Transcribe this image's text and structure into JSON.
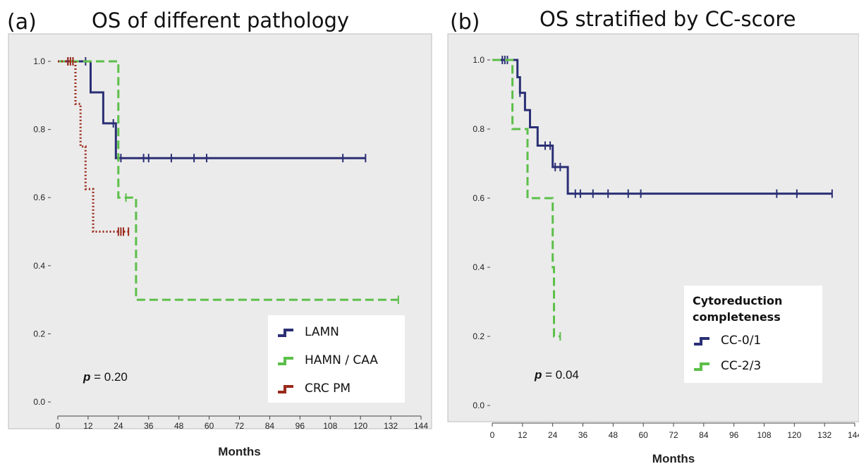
{
  "chart_data": [
    {
      "panel_label": "(a)",
      "title": "OS of different pathology",
      "type": "line",
      "subtype": "kaplan-meier",
      "xlabel": "Months",
      "ylabel": "",
      "xlim": [
        0,
        144
      ],
      "ylim": [
        0,
        1
      ],
      "x_ticks": [
        "0",
        "12",
        "24",
        "36",
        "48",
        "60",
        "72",
        "84",
        "96",
        "108",
        "120",
        "132",
        "144"
      ],
      "y_ticks": [
        "0.0",
        "0.2",
        "0.4",
        "0.6",
        "0.8",
        "1.0"
      ],
      "grid": false,
      "legend_title": "",
      "legend_position": "bottom-right",
      "p_value": {
        "symbol": "p",
        "text": " = 0.20"
      },
      "series": [
        {
          "name": "LAMN",
          "color": "#2b2f75",
          "dash": "solid",
          "steps": [
            [
              0,
              1.0
            ],
            [
              13,
              1.0
            ],
            [
              13,
              0.909
            ],
            [
              18,
              0.909
            ],
            [
              18,
              0.818
            ],
            [
              22,
              0.818
            ],
            [
              22,
              0.818
            ],
            [
              23,
              0.818
            ],
            [
              23,
              0.716
            ],
            [
              122,
              0.716
            ]
          ],
          "censored": [
            [
              4,
              1.0
            ],
            [
              6,
              1.0
            ],
            [
              11,
              1.0
            ],
            [
              22,
              0.818
            ],
            [
              25,
              0.716
            ],
            [
              34,
              0.716
            ],
            [
              36,
              0.716
            ],
            [
              45,
              0.716
            ],
            [
              54,
              0.716
            ],
            [
              59,
              0.716
            ],
            [
              113,
              0.716
            ],
            [
              122,
              0.716
            ]
          ]
        },
        {
          "name": "HAMN / CAA",
          "color": "#5cbf49",
          "dash": "dashed",
          "steps": [
            [
              0,
              1.0
            ],
            [
              24,
              1.0
            ],
            [
              24,
              0.6
            ],
            [
              31,
              0.6
            ],
            [
              31,
              0.3
            ],
            [
              135,
              0.3
            ]
          ],
          "censored": [
            [
              27,
              0.6
            ],
            [
              135,
              0.3
            ]
          ]
        },
        {
          "name": "CRC PM",
          "color": "#9a2a1c",
          "dash": "dotted",
          "steps": [
            [
              0,
              1.0
            ],
            [
              7,
              1.0
            ],
            [
              7,
              0.875
            ],
            [
              9,
              0.875
            ],
            [
              9,
              0.75
            ],
            [
              11,
              0.75
            ],
            [
              11,
              0.625
            ],
            [
              14,
              0.625
            ],
            [
              14,
              0.5
            ],
            [
              28,
              0.5
            ]
          ],
          "censored": [
            [
              4,
              1.0
            ],
            [
              5,
              1.0
            ],
            [
              6,
              1.0
            ],
            [
              24,
              0.5
            ],
            [
              25,
              0.5
            ],
            [
              26,
              0.5
            ],
            [
              28,
              0.5
            ]
          ]
        }
      ]
    },
    {
      "panel_label": "(b)",
      "title": "OS stratified by CC-score",
      "type": "line",
      "subtype": "kaplan-meier",
      "xlabel": "Months",
      "ylabel": "",
      "xlim": [
        0,
        144
      ],
      "ylim": [
        0,
        1
      ],
      "x_ticks": [
        "0",
        "12",
        "24",
        "36",
        "48",
        "60",
        "72",
        "84",
        "96",
        "108",
        "120",
        "132",
        "144"
      ],
      "y_ticks": [
        "0.0",
        "0.2",
        "0.4",
        "0.6",
        "0.8",
        "1.0"
      ],
      "grid": false,
      "legend_title": "Cytoreduction completeness",
      "legend_position": "bottom-right",
      "p_value": {
        "symbol": "p",
        "text": " = 0.04"
      },
      "series": [
        {
          "name": "CC-0/1",
          "color": "#2b2f75",
          "dash": "solid",
          "steps": [
            [
              0,
              1.0
            ],
            [
              10,
              1.0
            ],
            [
              10,
              0.95
            ],
            [
              11,
              0.95
            ],
            [
              11,
              0.905
            ],
            [
              13,
              0.905
            ],
            [
              13,
              0.855
            ],
            [
              15,
              0.855
            ],
            [
              15,
              0.805
            ],
            [
              18,
              0.805
            ],
            [
              18,
              0.752
            ],
            [
              24,
              0.752
            ],
            [
              24,
              0.69
            ],
            [
              30,
              0.69
            ],
            [
              30,
              0.613
            ],
            [
              135,
              0.613
            ]
          ],
          "censored": [
            [
              4,
              1.0
            ],
            [
              5,
              1.0
            ],
            [
              6,
              1.0
            ],
            [
              11,
              0.905
            ],
            [
              21,
              0.752
            ],
            [
              23,
              0.752
            ],
            [
              25,
              0.69
            ],
            [
              27,
              0.69
            ],
            [
              33,
              0.613
            ],
            [
              35,
              0.613
            ],
            [
              40,
              0.613
            ],
            [
              46,
              0.613
            ],
            [
              54,
              0.613
            ],
            [
              59,
              0.613
            ],
            [
              113,
              0.613
            ],
            [
              121,
              0.613
            ],
            [
              135,
              0.613
            ]
          ]
        },
        {
          "name": "CC-2/3",
          "color": "#5cbf49",
          "dash": "dashed",
          "steps": [
            [
              0,
              1.0
            ],
            [
              8,
              1.0
            ],
            [
              8,
              0.8
            ],
            [
              14,
              0.8
            ],
            [
              14,
              0.6
            ],
            [
              24,
              0.6
            ],
            [
              24,
              0.4
            ],
            [
              24.5,
              0.4
            ],
            [
              24.5,
              0.2
            ],
            [
              27,
              0.2
            ]
          ],
          "censored": [
            [
              27,
              0.2
            ]
          ]
        }
      ]
    }
  ]
}
